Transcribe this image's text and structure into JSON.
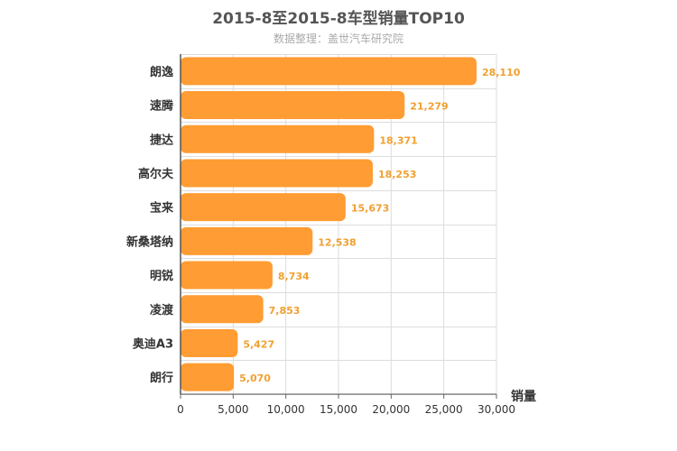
{
  "title": "2015-8至2015-8车型销量TOP10",
  "subtitle": "数据整理：盖世汽车研究院",
  "chart_data": {
    "type": "bar",
    "orientation": "horizontal",
    "title": "2015-8至2015-8车型销量TOP10",
    "subtitle": "数据整理：盖世汽车研究院",
    "categories": [
      "朗逸",
      "速腾",
      "捷达",
      "高尔夫",
      "宝来",
      "新桑塔纳",
      "明锐",
      "凌渡",
      "奥迪A3",
      "朗行"
    ],
    "values": [
      28110,
      21279,
      18371,
      18253,
      15673,
      12538,
      8734,
      7853,
      5427,
      5070
    ],
    "value_labels": [
      "28,110",
      "21,279",
      "18,371",
      "18,253",
      "15,673",
      "12,538",
      "8,734",
      "7,853",
      "5,427",
      "5,070"
    ],
    "xlabel": "销量",
    "ylabel": "",
    "xlim": [
      0,
      30000
    ],
    "ticks": [
      0,
      5000,
      10000,
      15000,
      20000,
      25000,
      30000
    ],
    "tick_labels": [
      "0",
      "5,000",
      "10,000",
      "15,000",
      "20,000",
      "25,000",
      "30,000"
    ],
    "grid": true,
    "bar_color": "#ff9c33",
    "label_color": "#f0a030"
  }
}
